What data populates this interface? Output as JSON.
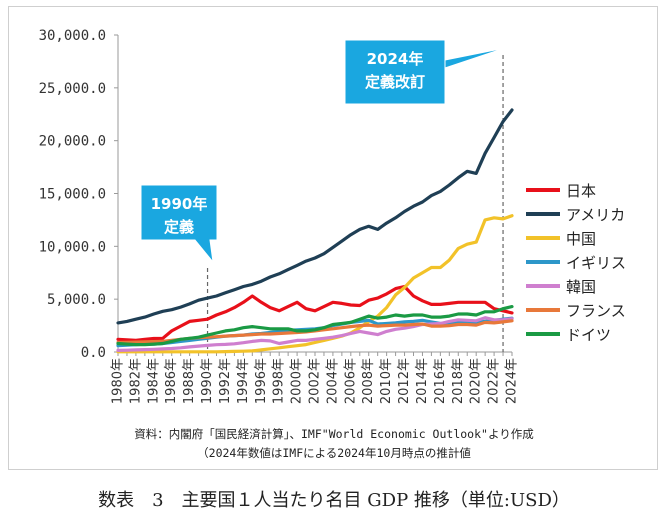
{
  "chart_data": {
    "type": "line",
    "title": "",
    "xlabel": "",
    "ylabel": "",
    "x": [
      "1980年",
      "1981年",
      "1982年",
      "1983年",
      "1984年",
      "1985年",
      "1986年",
      "1987年",
      "1988年",
      "1989年",
      "1990年",
      "1991年",
      "1992年",
      "1993年",
      "1994年",
      "1995年",
      "1996年",
      "1997年",
      "1998年",
      "1999年",
      "2000年",
      "2001年",
      "2002年",
      "2003年",
      "2004年",
      "2005年",
      "2006年",
      "2007年",
      "2008年",
      "2009年",
      "2010年",
      "2011年",
      "2012年",
      "2013年",
      "2014年",
      "2015年",
      "2016年",
      "2017年",
      "2018年",
      "2019年",
      "2020年",
      "2021年",
      "2022年",
      "2023年",
      "2024年"
    ],
    "x_tick_labels": [
      "1980年",
      "1982年",
      "1984年",
      "1986年",
      "1988年",
      "1990年",
      "1992年",
      "1994年",
      "1996年",
      "1998年",
      "2000年",
      "2002年",
      "2004年",
      "2006年",
      "2008年",
      "2010年",
      "2012年",
      "2014年",
      "2016年",
      "2018年",
      "2020年",
      "2022年",
      "2024年"
    ],
    "ylim": [
      0,
      30000
    ],
    "y_tick_labels": [
      "0.0",
      "5,000.0",
      "10,000.0",
      "15,000.0",
      "20,000.0",
      "25,000.0",
      "30,000.0"
    ],
    "grid": false,
    "legend_position": "right",
    "series": [
      {
        "name": "日本",
        "color": "#e8101a",
        "values": [
          1200,
          1150,
          1100,
          1200,
          1280,
          1300,
          2000,
          2450,
          2900,
          3000,
          3100,
          3500,
          3800,
          4200,
          4700,
          5300,
          4700,
          4200,
          3900,
          4300,
          4700,
          4100,
          3900,
          4300,
          4700,
          4600,
          4450,
          4400,
          4900,
          5100,
          5500,
          6000,
          6200,
          5300,
          4850,
          4500,
          4500,
          4600,
          4700,
          4700,
          4700,
          4700,
          4100,
          3900,
          3700
        ]
      },
      {
        "name": "アメリカ",
        "color": "#1f3f55",
        "values": [
          2750,
          2900,
          3100,
          3300,
          3600,
          3850,
          4000,
          4250,
          4550,
          4900,
          5100,
          5300,
          5600,
          5900,
          6200,
          6400,
          6700,
          7100,
          7400,
          7800,
          8200,
          8600,
          8900,
          9300,
          9900,
          10500,
          11100,
          11600,
          11900,
          11600,
          12200,
          12700,
          13300,
          13800,
          14200,
          14800,
          15200,
          15800,
          16500,
          17100,
          16900,
          18800,
          20300,
          21800,
          22900
        ]
      },
      {
        "name": "中国",
        "color": "#f2c229",
        "values": [
          20,
          20,
          20,
          20,
          20,
          20,
          20,
          20,
          20,
          20,
          20,
          20,
          40,
          60,
          80,
          100,
          200,
          300,
          400,
          500,
          600,
          700,
          900,
          1100,
          1300,
          1500,
          1800,
          2300,
          2900,
          3400,
          4200,
          5400,
          6100,
          7000,
          7500,
          8000,
          8000,
          8700,
          9800,
          10200,
          10400,
          12500,
          12700,
          12600,
          12900
        ]
      },
      {
        "name": "イギリス",
        "color": "#2d97c9",
        "values": [
          600,
          650,
          700,
          750,
          750,
          800,
          900,
          1000,
          1100,
          1200,
          1300,
          1400,
          1500,
          1550,
          1600,
          1700,
          1750,
          1850,
          1950,
          2050,
          2100,
          2150,
          2200,
          2300,
          2500,
          2650,
          2800,
          2900,
          3000,
          2650,
          2700,
          2750,
          2850,
          2900,
          3000,
          2850,
          2700,
          2700,
          2800,
          2800,
          2800,
          2900,
          3000,
          3100,
          3200
        ]
      },
      {
        "name": "韓国",
        "color": "#cf7fcf",
        "values": [
          150,
          170,
          200,
          230,
          260,
          290,
          330,
          400,
          480,
          560,
          620,
          690,
          720,
          780,
          880,
          1000,
          1100,
          1050,
          800,
          950,
          1100,
          1100,
          1200,
          1300,
          1400,
          1550,
          1750,
          1950,
          1800,
          1650,
          1950,
          2150,
          2250,
          2400,
          2600,
          2650,
          2700,
          2900,
          3050,
          3000,
          2950,
          3250,
          3050,
          3050,
          3150
        ]
      },
      {
        "name": "フランス",
        "color": "#e8783a",
        "values": [
          900,
          920,
          940,
          960,
          980,
          1000,
          1100,
          1200,
          1300,
          1350,
          1400,
          1450,
          1500,
          1550,
          1600,
          1650,
          1700,
          1700,
          1750,
          1800,
          1850,
          1900,
          2000,
          2100,
          2200,
          2300,
          2400,
          2500,
          2550,
          2450,
          2500,
          2550,
          2550,
          2600,
          2650,
          2450,
          2450,
          2500,
          2600,
          2600,
          2550,
          2800,
          2750,
          2850,
          2950
        ]
      },
      {
        "name": "ドイツ",
        "color": "#1a9a44",
        "values": [
          800,
          750,
          700,
          700,
          750,
          800,
          1000,
          1200,
          1300,
          1400,
          1600,
          1800,
          2000,
          2100,
          2300,
          2400,
          2300,
          2200,
          2200,
          2200,
          2000,
          2000,
          2100,
          2300,
          2600,
          2700,
          2800,
          3100,
          3400,
          3200,
          3300,
          3500,
          3400,
          3500,
          3500,
          3300,
          3300,
          3400,
          3600,
          3600,
          3500,
          3800,
          3800,
          4100,
          4300
        ]
      }
    ],
    "annotations": [
      {
        "label": "1990年\n定義",
        "x": "1990年"
      },
      {
        "label": "2024年\n定義改訂",
        "x": "2023年"
      }
    ]
  },
  "source_note": {
    "line1": "資料：内閣府「国民経済計算」、IMF\"World Economic Outlook\"より作成",
    "line2": "（2024年数値はIMFによる2024年10月時点の推計値"
  },
  "caption": "数表　3　主要国１人当たり名目 GDP 推移（単位:USD）"
}
